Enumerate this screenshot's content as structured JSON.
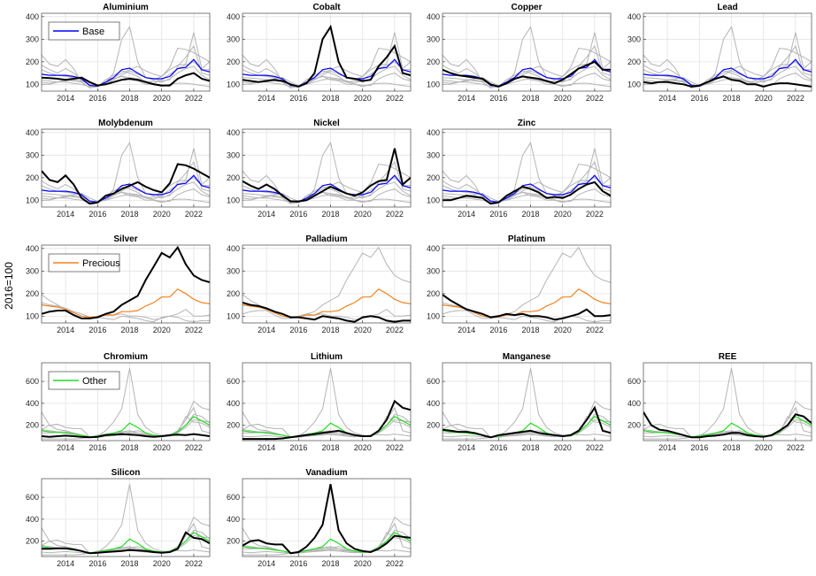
{
  "chart_data": [
    {
      "type": "line",
      "name": "Base",
      "color": "#0000ff",
      "x": [
        2012.5,
        2013,
        2013.5,
        2014,
        2014.5,
        2015,
        2015.5,
        2016,
        2016.5,
        2017,
        2017.5,
        2018,
        2018.5,
        2019,
        2019.5,
        2020,
        2020.5,
        2021,
        2021.5,
        2022,
        2022.5,
        2023
      ],
      "xlim": [
        2012.5,
        2023
      ],
      "xticks": [
        2014,
        2016,
        2018,
        2020,
        2022
      ],
      "ylim": [
        70,
        415
      ],
      "yticks": [
        100,
        200,
        300,
        400
      ],
      "grid": true,
      "mean": [
        145,
        140,
        140,
        140,
        135,
        125,
        95,
        92,
        110,
        130,
        165,
        172,
        150,
        130,
        125,
        125,
        135,
        170,
        175,
        210,
        165,
        155
      ],
      "panels": [
        {
          "title": "Aluminium",
          "values": [
            130,
            128,
            125,
            120,
            125,
            130,
            110,
            95,
            100,
            110,
            120,
            125,
            120,
            110,
            100,
            95,
            95,
            125,
            140,
            150,
            125,
            115
          ]
        },
        {
          "title": "Cobalt",
          "values": [
            120,
            115,
            110,
            115,
            120,
            115,
            100,
            90,
            105,
            150,
            300,
            355,
            200,
            130,
            125,
            115,
            120,
            180,
            220,
            270,
            150,
            140
          ]
        },
        {
          "title": "Copper",
          "values": [
            165,
            150,
            140,
            135,
            130,
            125,
            100,
            90,
            105,
            125,
            135,
            130,
            125,
            115,
            105,
            120,
            145,
            170,
            185,
            200,
            165,
            165
          ]
        },
        {
          "title": "Lead",
          "values": [
            110,
            105,
            110,
            110,
            105,
            100,
            90,
            95,
            110,
            125,
            135,
            120,
            115,
            100,
            100,
            90,
            100,
            105,
            105,
            100,
            95,
            90
          ]
        },
        {
          "title": "Molybdenum",
          "values": [
            230,
            190,
            180,
            210,
            170,
            110,
            85,
            90,
            120,
            130,
            150,
            165,
            180,
            160,
            145,
            135,
            175,
            260,
            255,
            240,
            220,
            200
          ]
        },
        {
          "title": "Nickel",
          "values": [
            185,
            165,
            150,
            170,
            150,
            120,
            95,
            95,
            100,
            120,
            140,
            160,
            145,
            130,
            120,
            135,
            165,
            185,
            190,
            330,
            170,
            200
          ]
        },
        {
          "title": "Zinc",
          "values": [
            100,
            100,
            110,
            120,
            115,
            110,
            85,
            90,
            120,
            140,
            160,
            150,
            135,
            110,
            115,
            110,
            125,
            150,
            170,
            180,
            140,
            120
          ]
        }
      ]
    },
    {
      "type": "line",
      "name": "Precious",
      "color": "#f0821e",
      "ylabel": "2016=100",
      "x": [
        2012.5,
        2013,
        2013.5,
        2014,
        2014.5,
        2015,
        2015.5,
        2016,
        2016.5,
        2017,
        2017.5,
        2018,
        2018.5,
        2019,
        2019.5,
        2020,
        2020.5,
        2021,
        2021.5,
        2022,
        2022.5,
        2023
      ],
      "xlim": [
        2012.5,
        2023
      ],
      "xticks": [
        2014,
        2016,
        2018,
        2020,
        2022
      ],
      "ylim": [
        70,
        415
      ],
      "yticks": [
        100,
        200,
        300,
        400
      ],
      "grid": true,
      "mean": [
        150,
        145,
        140,
        130,
        115,
        100,
        95,
        97,
        105,
        105,
        120,
        120,
        125,
        145,
        160,
        185,
        185,
        220,
        200,
        175,
        160,
        155
      ],
      "panels": [
        {
          "title": "Silver",
          "values": [
            110,
            120,
            125,
            125,
            105,
            90,
            90,
            95,
            110,
            120,
            150,
            170,
            190,
            260,
            320,
            380,
            360,
            405,
            330,
            280,
            260,
            250
          ]
        },
        {
          "title": "Palladium",
          "values": [
            160,
            150,
            145,
            135,
            120,
            110,
            95,
            95,
            90,
            85,
            100,
            95,
            90,
            80,
            75,
            95,
            100,
            95,
            80,
            75,
            80,
            80
          ]
        },
        {
          "title": "Platinum",
          "values": [
            195,
            170,
            150,
            130,
            120,
            110,
            95,
            100,
            110,
            105,
            110,
            100,
            100,
            95,
            85,
            90,
            100,
            110,
            130,
            100,
            100,
            105
          ]
        }
      ]
    },
    {
      "type": "line",
      "name": "Other",
      "color": "#22dd22",
      "x": [
        2012.5,
        2013,
        2013.5,
        2014,
        2014.5,
        2015,
        2015.5,
        2016,
        2016.5,
        2017,
        2017.5,
        2018,
        2018.5,
        2019,
        2019.5,
        2020,
        2020.5,
        2021,
        2021.5,
        2022,
        2022.5,
        2023
      ],
      "xlim": [
        2012.5,
        2023
      ],
      "xticks": [
        2014,
        2016,
        2018,
        2020,
        2022
      ],
      "ylim": [
        60,
        770
      ],
      "yticks": [
        200,
        400,
        600
      ],
      "grid": true,
      "mean": [
        150,
        140,
        135,
        130,
        120,
        110,
        95,
        100,
        115,
        130,
        150,
        220,
        180,
        130,
        110,
        100,
        105,
        140,
        200,
        280,
        240,
        200
      ],
      "panels": [
        {
          "title": "Chromium",
          "values": [
            100,
            95,
            100,
            105,
            100,
            95,
            90,
            95,
            110,
            115,
            120,
            115,
            110,
            100,
            95,
            100,
            110,
            115,
            110,
            120,
            110,
            100
          ]
        },
        {
          "title": "Lithium",
          "values": [
            75,
            75,
            75,
            75,
            75,
            80,
            90,
            100,
            110,
            120,
            130,
            140,
            150,
            130,
            110,
            100,
            100,
            150,
            250,
            420,
            360,
            340
          ]
        },
        {
          "title": "Manganese",
          "values": [
            160,
            150,
            140,
            140,
            130,
            110,
            90,
            110,
            120,
            130,
            140,
            150,
            130,
            120,
            110,
            100,
            110,
            150,
            250,
            360,
            150,
            130
          ]
        },
        {
          "title": "REE",
          "values": [
            320,
            200,
            160,
            150,
            130,
            110,
            90,
            90,
            100,
            105,
            115,
            130,
            130,
            110,
            100,
            95,
            110,
            150,
            200,
            300,
            280,
            220
          ]
        },
        {
          "title": "Silicon",
          "values": [
            130,
            130,
            135,
            135,
            125,
            110,
            90,
            95,
            100,
            105,
            110,
            120,
            115,
            110,
            100,
            95,
            100,
            130,
            280,
            230,
            220,
            180
          ]
        },
        {
          "title": "Vanadium",
          "values": [
            160,
            200,
            210,
            180,
            170,
            170,
            90,
            100,
            150,
            230,
            350,
            720,
            300,
            180,
            130,
            110,
            100,
            130,
            180,
            250,
            240,
            230
          ]
        }
      ]
    }
  ]
}
